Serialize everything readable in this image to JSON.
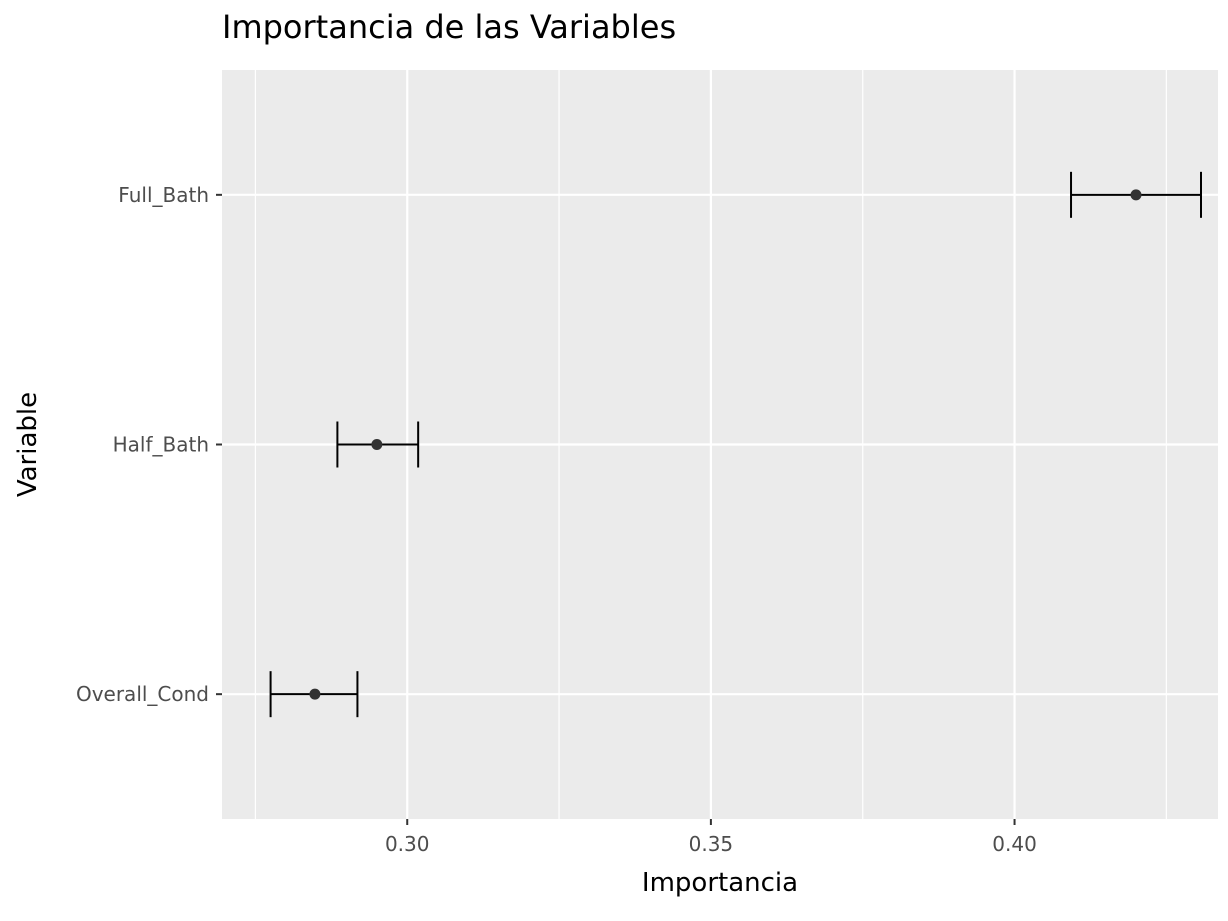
{
  "chart_data": {
    "type": "scatter",
    "title": "Importancia de las Variables",
    "xlabel": "Importancia",
    "ylabel": "Variable",
    "xlim": [
      0.2695,
      0.4335
    ],
    "xticks": [
      0.3,
      0.35,
      0.4
    ],
    "xtick_labels": [
      "0.30",
      "0.35",
      "0.40"
    ],
    "categories": [
      "Full_Bath",
      "Half_Bath",
      "Overall_Cond"
    ],
    "points": [
      {
        "category": "Full_Bath",
        "value": 0.42,
        "lower": 0.4093,
        "upper": 0.4307
      },
      {
        "category": "Half_Bath",
        "value": 0.295,
        "lower": 0.2885,
        "upper": 0.3018
      },
      {
        "category": "Overall_Cond",
        "value": 0.2848,
        "lower": 0.2775,
        "upper": 0.2918
      }
    ],
    "grid": true,
    "legend": "none",
    "colors": {
      "panel_background": "#ebebeb",
      "grid": "#ffffff",
      "point": "#333333",
      "errorbar": "#000000",
      "tick_text": "#4d4d4d"
    }
  }
}
